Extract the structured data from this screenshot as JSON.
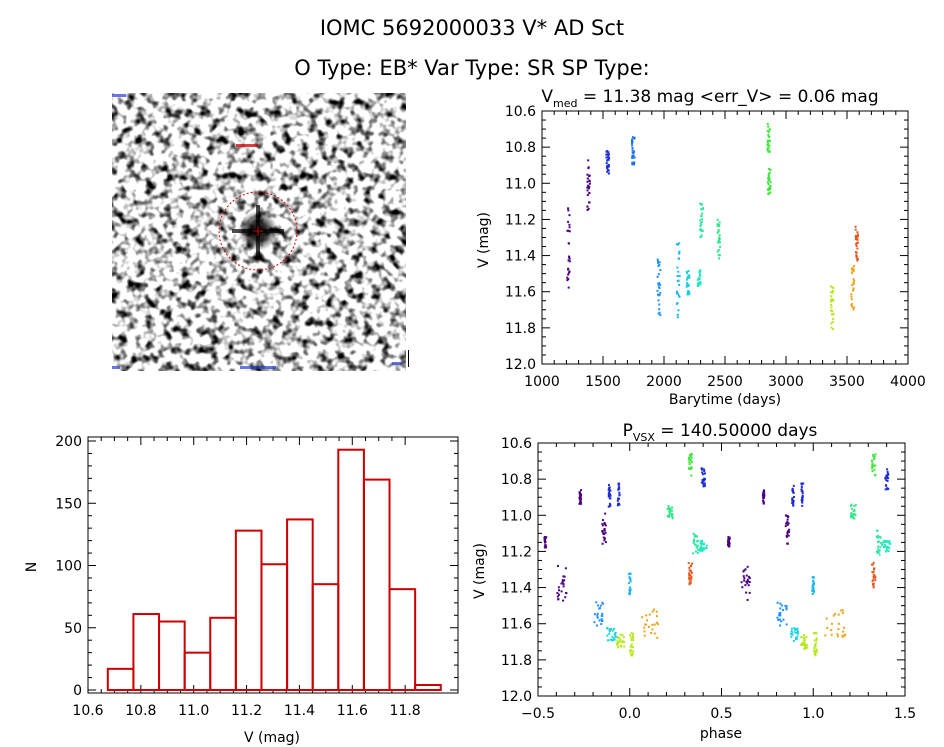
{
  "header": {
    "title": "IOMC 5692000033    V* AD Sct",
    "subtitle": "O Type: EB*  Var Type: SR   SP Type:"
  },
  "image_panel": {
    "label": "finder chart image"
  },
  "chart_data": [
    {
      "id": "lightcurve",
      "type": "scatter",
      "title_main": "V",
      "title_sub": "med",
      "title_rest": " = 11.38 mag <err_V> = 0.06 mag",
      "xlabel": "Barytime (days)",
      "ylabel": "V (mag)",
      "xlim": [
        1000,
        4000
      ],
      "ylim": [
        12.0,
        10.6
      ],
      "xticks": [
        "1000",
        "1500",
        "2000",
        "2500",
        "3000",
        "3500",
        "4000"
      ],
      "yticks": [
        "10.6",
        "10.8",
        "11.0",
        "11.2",
        "11.4",
        "11.6",
        "11.8",
        "12.0"
      ],
      "groups": [
        {
          "x": 1210,
          "y": [
            11.12,
            11.6
          ],
          "color": "#4b0082"
        },
        {
          "x": 1375,
          "y": [
            10.85,
            11.15
          ],
          "color": "#4b0082"
        },
        {
          "x": 1530,
          "y": [
            10.82,
            10.95
          ],
          "color": "#1c2cd8"
        },
        {
          "x": 1740,
          "y": [
            10.74,
            10.9
          ],
          "color": "#1c73ef"
        },
        {
          "x": 1950,
          "y": [
            11.42,
            11.73
          ],
          "color": "#1e90ff"
        },
        {
          "x": 2110,
          "y": [
            11.33,
            11.77
          ],
          "color": "#18b9ee"
        },
        {
          "x": 2190,
          "y": [
            11.48,
            11.62
          ],
          "color": "#18d2e0"
        },
        {
          "x": 2280,
          "y": [
            11.48,
            11.57
          ],
          "color": "#1ee8c0"
        },
        {
          "x": 2300,
          "y": [
            11.1,
            11.3
          ],
          "color": "#2ee8a0"
        },
        {
          "x": 2440,
          "y": [
            11.18,
            11.43
          ],
          "color": "#2ee888"
        },
        {
          "x": 2850,
          "y": [
            10.66,
            10.83
          ],
          "color": "#3ee83a"
        },
        {
          "x": 2855,
          "y": [
            10.92,
            11.06
          ],
          "color": "#3ee83a"
        },
        {
          "x": 3370,
          "y": [
            11.57,
            11.82
          ],
          "color": "#b6e81a"
        },
        {
          "x": 3540,
          "y": [
            11.45,
            11.7
          ],
          "color": "#f0a21a"
        },
        {
          "x": 3570,
          "y": [
            11.23,
            11.43
          ],
          "color": "#e9561c"
        }
      ]
    },
    {
      "id": "histogram",
      "type": "bar",
      "xlabel": "V (mag)",
      "ylabel": "N",
      "xlim": [
        10.6,
        12.0
      ],
      "ylim": [
        0,
        200
      ],
      "xticks": [
        "10.6",
        "10.8",
        "11.0",
        "11.2",
        "11.4",
        "11.6",
        "11.8"
      ],
      "yticks": [
        "0",
        "50",
        "100",
        "150",
        "200"
      ],
      "bin_start": 10.675,
      "bin_width": 0.0969,
      "values": [
        17,
        61,
        55,
        30,
        58,
        128,
        101,
        137,
        85,
        193,
        169,
        81,
        4
      ],
      "color": "#cc0000"
    },
    {
      "id": "phased",
      "type": "scatter",
      "title_main": "P",
      "title_sub": "VSX",
      "title_rest": " = 140.50000 days",
      "xlabel": "phase",
      "ylabel": "V (mag)",
      "xlim": [
        -0.5,
        1.5
      ],
      "ylim": [
        12.0,
        10.6
      ],
      "xticks": [
        "−0.5",
        "0.0",
        "0.5",
        "1.0",
        "1.5"
      ],
      "yticks": [
        "10.6",
        "10.8",
        "11.0",
        "11.2",
        "11.4",
        "11.6",
        "11.8",
        "12.0"
      ],
      "groups": [
        {
          "x": -0.46,
          "w": 0.01,
          "y": [
            11.12,
            11.18
          ],
          "color": "#4b0082"
        },
        {
          "x": -0.37,
          "w": 0.05,
          "y": [
            11.28,
            11.48
          ],
          "color": "#4b0082"
        },
        {
          "x": -0.27,
          "w": 0.01,
          "y": [
            10.86,
            10.94
          ],
          "color": "#4b0082"
        },
        {
          "x": -0.14,
          "w": 0.02,
          "y": [
            10.99,
            11.16
          ],
          "color": "#4b0082"
        },
        {
          "x": -0.11,
          "w": 0.01,
          "y": [
            10.83,
            10.96
          ],
          "color": "#1c2cd8"
        },
        {
          "x": -0.06,
          "w": 0.01,
          "y": [
            10.82,
            10.95
          ],
          "color": "#1c2cd8"
        },
        {
          "x": -0.17,
          "w": 0.05,
          "y": [
            11.48,
            11.62
          ],
          "color": "#1e90ff"
        },
        {
          "x": -0.1,
          "w": 0.05,
          "y": [
            11.62,
            11.7
          ],
          "color": "#18d2e0"
        },
        {
          "x": -0.05,
          "w": 0.04,
          "y": [
            11.66,
            11.74
          ],
          "color": "#b6e81a"
        },
        {
          "x": 0.0,
          "w": 0.01,
          "y": [
            11.32,
            11.44
          ],
          "color": "#18b9ee"
        },
        {
          "x": 0.01,
          "w": 0.02,
          "y": [
            11.65,
            11.78
          ],
          "color": "#b6e81a"
        },
        {
          "x": 0.12,
          "w": 0.11,
          "y": [
            11.52,
            11.68
          ],
          "color": "#f0a21a"
        },
        {
          "x": 0.22,
          "w": 0.03,
          "y": [
            10.94,
            11.02
          ],
          "color": "#2ee888"
        },
        {
          "x": 0.33,
          "w": 0.02,
          "y": [
            10.66,
            10.78
          ],
          "color": "#3ee83a"
        },
        {
          "x": 0.33,
          "w": 0.02,
          "y": [
            11.26,
            11.4
          ],
          "color": "#e9561c"
        },
        {
          "x": 0.36,
          "w": 0.03,
          "y": [
            11.08,
            11.22
          ],
          "color": "#2ee8a0"
        },
        {
          "x": 0.4,
          "w": 0.04,
          "y": [
            11.14,
            11.2
          ],
          "color": "#1ee8c0"
        },
        {
          "x": 0.4,
          "w": 0.02,
          "y": [
            10.74,
            10.86
          ],
          "color": "#1c2cd8"
        },
        {
          "x": 0.54,
          "w": 0.01,
          "y": [
            11.12,
            11.18
          ],
          "color": "#4b0082"
        },
        {
          "x": 0.63,
          "w": 0.05,
          "y": [
            11.28,
            11.48
          ],
          "color": "#4b0082"
        },
        {
          "x": 0.73,
          "w": 0.01,
          "y": [
            10.86,
            10.94
          ],
          "color": "#4b0082"
        },
        {
          "x": 0.86,
          "w": 0.02,
          "y": [
            10.99,
            11.16
          ],
          "color": "#4b0082"
        },
        {
          "x": 0.89,
          "w": 0.01,
          "y": [
            10.83,
            10.96
          ],
          "color": "#1c2cd8"
        },
        {
          "x": 0.94,
          "w": 0.01,
          "y": [
            10.82,
            10.95
          ],
          "color": "#1c2cd8"
        },
        {
          "x": 0.83,
          "w": 0.05,
          "y": [
            11.48,
            11.62
          ],
          "color": "#1e90ff"
        },
        {
          "x": 0.9,
          "w": 0.05,
          "y": [
            11.62,
            11.7
          ],
          "color": "#18d2e0"
        },
        {
          "x": 0.95,
          "w": 0.04,
          "y": [
            11.66,
            11.74
          ],
          "color": "#b6e81a"
        },
        {
          "x": 1.0,
          "w": 0.01,
          "y": [
            11.32,
            11.44
          ],
          "color": "#18b9ee"
        },
        {
          "x": 1.01,
          "w": 0.02,
          "y": [
            11.65,
            11.78
          ],
          "color": "#b6e81a"
        },
        {
          "x": 1.12,
          "w": 0.11,
          "y": [
            11.52,
            11.68
          ],
          "color": "#f0a21a"
        },
        {
          "x": 1.22,
          "w": 0.03,
          "y": [
            10.94,
            11.02
          ],
          "color": "#2ee888"
        },
        {
          "x": 1.33,
          "w": 0.02,
          "y": [
            10.66,
            10.78
          ],
          "color": "#3ee83a"
        },
        {
          "x": 1.33,
          "w": 0.02,
          "y": [
            11.26,
            11.4
          ],
          "color": "#e9561c"
        },
        {
          "x": 1.36,
          "w": 0.03,
          "y": [
            11.08,
            11.22
          ],
          "color": "#2ee8a0"
        },
        {
          "x": 1.4,
          "w": 0.04,
          "y": [
            11.14,
            11.2
          ],
          "color": "#1ee8c0"
        },
        {
          "x": 1.4,
          "w": 0.02,
          "y": [
            10.74,
            10.86
          ],
          "color": "#1c2cd8"
        }
      ]
    }
  ]
}
